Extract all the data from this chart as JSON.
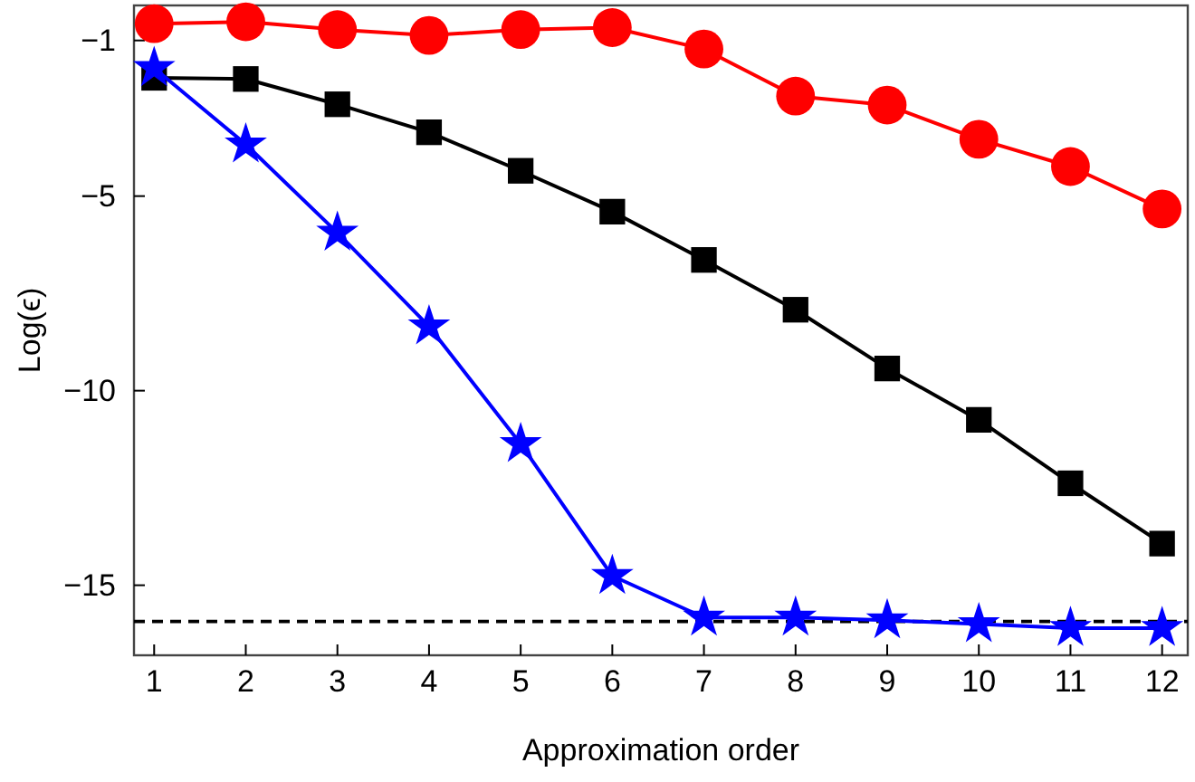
{
  "chart_data": {
    "type": "line",
    "xlabel": "Approximation order",
    "ylabel": "Log(ϵ)",
    "x": [
      1,
      2,
      3,
      4,
      5,
      6,
      7,
      8,
      9,
      10,
      11,
      12
    ],
    "xlim": [
      0.78,
      12.28
    ],
    "xticks": [
      1,
      2,
      3,
      4,
      5,
      6,
      7,
      8,
      9,
      10,
      11,
      12
    ],
    "ylim": [
      -16.8,
      -0.1
    ],
    "yticks": [
      {
        "value": -1,
        "label": "−1"
      },
      {
        "value": -5,
        "label": "−5"
      },
      {
        "value": -10,
        "label": "−10"
      },
      {
        "value": -15,
        "label": "−15"
      }
    ],
    "grid": false,
    "line_style": "solid",
    "series": [
      {
        "color": "#ff0000",
        "marker": "circle",
        "values": [
          -0.57,
          -0.52,
          -0.72,
          -0.87,
          -0.72,
          -0.67,
          -1.22,
          -2.43,
          -2.66,
          -3.54,
          -4.24,
          -5.33
        ]
      },
      {
        "color": "#000000",
        "marker": "square",
        "values": [
          -1.96,
          -1.99,
          -2.64,
          -3.36,
          -4.35,
          -5.4,
          -6.64,
          -7.92,
          -9.43,
          -10.75,
          -12.38,
          -13.93
        ]
      },
      {
        "color": "#0000ff",
        "marker": "star",
        "values": [
          -1.71,
          -3.67,
          -5.94,
          -8.35,
          -11.37,
          -14.76,
          -15.83,
          -15.83,
          -15.9,
          -16.0,
          -16.1,
          -16.1
        ]
      }
    ],
    "ref_lines": [
      {
        "axis": "y",
        "value": -15.93,
        "color": "#000000",
        "line_style": "dashed"
      }
    ]
  }
}
